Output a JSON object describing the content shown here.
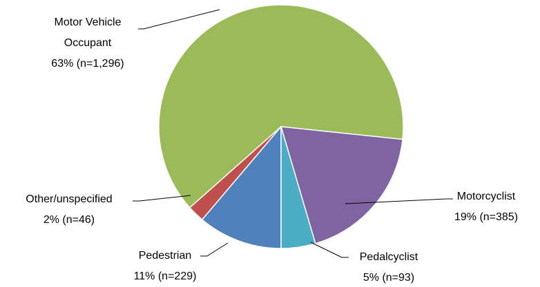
{
  "chart_data": {
    "type": "pie",
    "categories": [
      "Pedestrian",
      "Other/unspecified",
      "Motor Vehicle Occupant",
      "Motorcyclist",
      "Pedalcyclist"
    ],
    "values": [
      229,
      46,
      1296,
      385,
      93
    ],
    "value_labels": [
      "11% (n=229)",
      "2% (n=46)",
      "63% (n=1,296)",
      "19% (n=385)",
      "5% (n=93)"
    ],
    "colors": [
      "#4F81BD",
      "#C0504D",
      "#9BBB59",
      "#8064A2",
      "#4BACC6"
    ],
    "start_angle": 180
  }
}
